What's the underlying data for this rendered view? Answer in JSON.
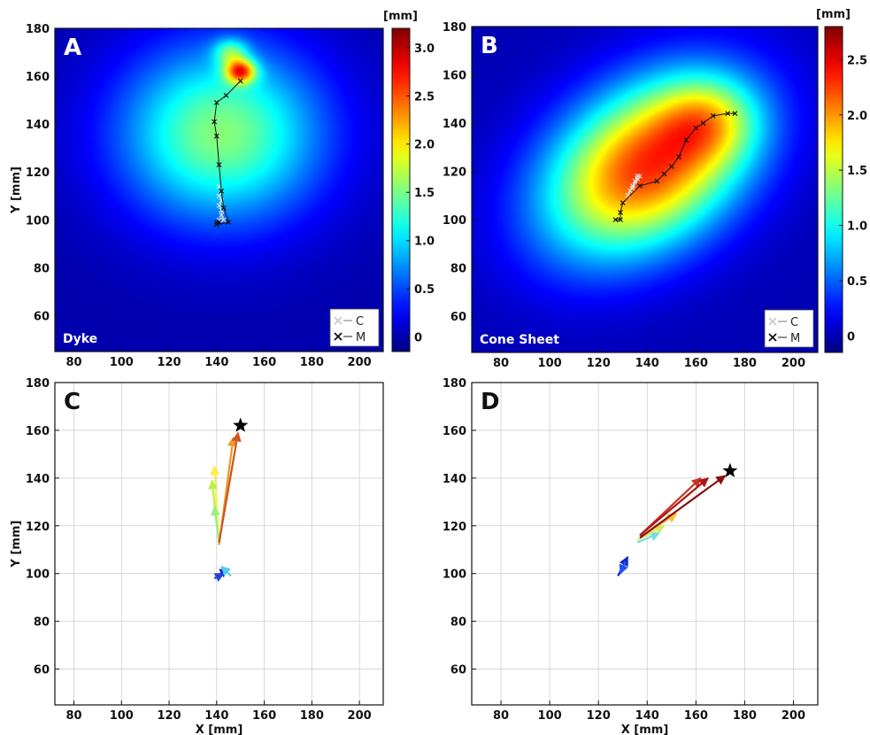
{
  "chart_data": [
    {
      "panel": "A",
      "type": "heatmap",
      "tag": "Dyke",
      "xlabel": "",
      "ylabel": "Y [mm]",
      "xlim": [
        72,
        210
      ],
      "ylim": [
        45,
        180
      ],
      "xticks": [
        80,
        100,
        120,
        140,
        160,
        180,
        200
      ],
      "yticks": [
        60,
        80,
        100,
        120,
        140,
        160,
        180
      ],
      "colorbar": {
        "unit": "[mm]",
        "min": -0.15,
        "max": 3.2,
        "ticks": [
          0,
          0.5,
          1.0,
          1.5,
          2.0,
          2.5,
          3.0
        ],
        "tick_labels": [
          "0",
          "0.5",
          "1.0",
          "1.5",
          "2.0",
          "2.5",
          "3.0"
        ]
      },
      "legend": [
        {
          "label": "C",
          "color": "#cccccc"
        },
        {
          "label": "M",
          "color": "#111111"
        }
      ],
      "field": {
        "blobs": [
          {
            "cx": 142,
            "cy": 136,
            "sx": 30,
            "sy": 26,
            "amp": 1.55
          },
          {
            "cx": 150,
            "cy": 162,
            "sx": 4.5,
            "sy": 3.5,
            "amp": 1.9
          },
          {
            "cx": 146,
            "cy": 170,
            "sx": 5,
            "sy": 4,
            "amp": 0.9
          }
        ]
      },
      "series": [
        {
          "name": "C",
          "color": "#dddddd",
          "points": [
            [
              141,
              114
            ],
            [
              142,
              112
            ],
            [
              141,
              110
            ],
            [
              142,
              108
            ],
            [
              141,
              106
            ],
            [
              142,
              104
            ],
            [
              142,
              102
            ],
            [
              143,
              100
            ],
            [
              141,
              100
            ]
          ]
        },
        {
          "name": "M",
          "color": "#111111",
          "points": [
            [
              150,
              158
            ],
            [
              144,
              152
            ],
            [
              140,
              149
            ],
            [
              139,
              141
            ],
            [
              140,
              135
            ],
            [
              141,
              123
            ],
            [
              142,
              112
            ],
            [
              143,
              105
            ],
            [
              145,
              99
            ],
            [
              140,
              98
            ],
            [
              141,
              99
            ],
            [
              140,
              99
            ]
          ]
        }
      ]
    },
    {
      "panel": "B",
      "type": "heatmap",
      "tag": "Cone Sheet",
      "xlabel": "",
      "ylabel": "",
      "xlim": [
        68,
        210
      ],
      "ylim": [
        45,
        180
      ],
      "xticks": [
        80,
        100,
        120,
        140,
        160,
        180,
        200
      ],
      "yticks": [
        60,
        80,
        100,
        120,
        140,
        160,
        180
      ],
      "colorbar": {
        "unit": "[mm]",
        "min": -0.15,
        "max": 2.8,
        "ticks": [
          0,
          0.5,
          1.0,
          1.5,
          2.0,
          2.5
        ],
        "tick_labels": [
          "0",
          "0.5",
          "1.0",
          "1.5",
          "2.0",
          "2.5"
        ]
      },
      "legend": [
        {
          "label": "C",
          "color": "#cccccc"
        },
        {
          "label": "M",
          "color": "#111111"
        }
      ],
      "field": {
        "blobs": [
          {
            "cx": 140,
            "cy": 122,
            "sx": 32,
            "sy": 22,
            "amp": 2.3,
            "rot": 0.6
          },
          {
            "cx": 165,
            "cy": 141,
            "sx": 14,
            "sy": 12,
            "amp": 0.75
          }
        ]
      },
      "series": [
        {
          "name": "C",
          "color": "#dddddd",
          "points": [
            [
              136,
              118
            ],
            [
              135,
              116
            ],
            [
              134,
              114
            ],
            [
              133,
              112
            ],
            [
              132,
              110
            ],
            [
              136,
              117
            ],
            [
              137,
              118
            ],
            [
              134,
              113
            ]
          ]
        },
        {
          "name": "M",
          "color": "#111111",
          "points": [
            [
              127,
              100
            ],
            [
              129,
              100
            ],
            [
              129,
              103
            ],
            [
              130,
              107
            ],
            [
              137,
              114
            ],
            [
              144,
              116
            ],
            [
              147,
              119
            ],
            [
              150,
              122
            ],
            [
              153,
              126
            ],
            [
              156,
              133
            ],
            [
              160,
              138
            ],
            [
              163,
              140
            ],
            [
              167,
              143
            ],
            [
              173,
              144
            ],
            [
              176,
              144
            ]
          ]
        }
      ]
    },
    {
      "panel": "C",
      "type": "scatter",
      "xlabel": "X [mm]",
      "ylabel": "Y [mm]",
      "xlim": [
        72,
        210
      ],
      "ylim": [
        45,
        180
      ],
      "xticks": [
        80,
        100,
        120,
        140,
        160,
        180,
        200
      ],
      "yticks": [
        60,
        80,
        100,
        120,
        140,
        160,
        180
      ],
      "grid": true,
      "star": [
        150,
        162
      ],
      "arrows": [
        {
          "from": [
            140,
            99
          ],
          "to": [
            145,
            102
          ],
          "color": "#1a28c8"
        },
        {
          "from": [
            139,
            98
          ],
          "to": [
            143,
            100
          ],
          "color": "#2244dd"
        },
        {
          "from": [
            146,
            99
          ],
          "to": [
            142,
            103
          ],
          "color": "#55ccee"
        },
        {
          "from": [
            141,
            113
          ],
          "to": [
            139,
            145
          ],
          "color": "#ffee44"
        },
        {
          "from": [
            141,
            113
          ],
          "to": [
            138,
            139
          ],
          "color": "#bbee55"
        },
        {
          "from": [
            141,
            113
          ],
          "to": [
            139,
            128
          ],
          "color": "#99ee88"
        },
        {
          "from": [
            141,
            112
          ],
          "to": [
            147,
            157
          ],
          "color": "#ee9922"
        },
        {
          "from": [
            141,
            113
          ],
          "to": [
            149,
            159
          ],
          "color": "#cc5522"
        }
      ]
    },
    {
      "panel": "D",
      "type": "scatter",
      "xlabel": "X [mm]",
      "ylabel": "",
      "xlim": [
        68,
        210
      ],
      "ylim": [
        45,
        180
      ],
      "xticks": [
        80,
        100,
        120,
        140,
        160,
        180,
        200
      ],
      "yticks": [
        60,
        80,
        100,
        120,
        140,
        160,
        180
      ],
      "grid": true,
      "star": [
        174,
        143
      ],
      "arrows": [
        {
          "from": [
            128,
            99
          ],
          "to": [
            132,
            107
          ],
          "color": "#1122cc"
        },
        {
          "from": [
            131,
            105
          ],
          "to": [
            129,
            100
          ],
          "color": "#2255ee"
        },
        {
          "from": [
            136,
            113
          ],
          "to": [
            145,
            117
          ],
          "color": "#77dddd"
        },
        {
          "from": [
            136,
            114
          ],
          "to": [
            147,
            120
          ],
          "color": "#ccee66"
        },
        {
          "from": [
            137,
            115
          ],
          "to": [
            152,
            125
          ],
          "color": "#ffbb33"
        },
        {
          "from": [
            137,
            116
          ],
          "to": [
            162,
            140
          ],
          "color": "#cc3322"
        },
        {
          "from": [
            137,
            116
          ],
          "to": [
            165,
            140
          ],
          "color": "#aa1818"
        },
        {
          "from": [
            137,
            115
          ],
          "to": [
            172,
            141
          ],
          "color": "#881010"
        }
      ]
    }
  ]
}
